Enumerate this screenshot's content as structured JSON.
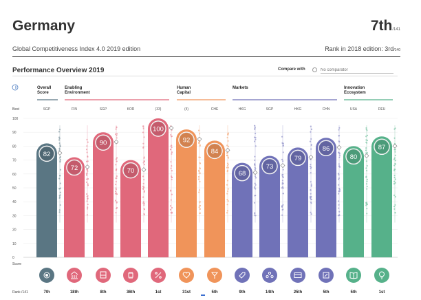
{
  "header": {
    "country": "Germany",
    "rank": "7th",
    "rank_of": "/141",
    "edition": "Global Competitiveness Index 4.0 2019 edition",
    "rank_2018_label": "Rank in 2018 edition: 3rd",
    "rank_2018_of": "/140"
  },
  "panel": {
    "title": "Performance Overview 2019",
    "compare_label": "Compare with",
    "compare_placeholder": "No comparator"
  },
  "labels": {
    "info": "i",
    "best": "Best",
    "score": "Score",
    "rank": "Rank /141"
  },
  "chart_data": {
    "type": "bar",
    "ylim": [
      0,
      100
    ],
    "yticks": [
      0,
      10,
      20,
      30,
      40,
      50,
      60,
      70,
      80,
      90,
      100
    ],
    "groups": [
      {
        "name": "Overall Score",
        "pillars": 1,
        "color": "#5a7683"
      },
      {
        "name": "Enabling Environment",
        "pillars": 4,
        "color": "#e0687b"
      },
      {
        "name": "Human Capital",
        "pillars": 2,
        "color": "#f0945a"
      },
      {
        "name": "Markets",
        "pillars": 4,
        "color": "#7072b8"
      },
      {
        "name": "Innovation Ecosystem",
        "pillars": 2,
        "color": "#56b18a"
      }
    ],
    "pillars": [
      {
        "best": "SGP",
        "value": 82,
        "rank": "7th",
        "icon": "target-icon",
        "group": 0
      },
      {
        "best": "FIN",
        "value": 72,
        "rank": "18th",
        "icon": "institutions-icon",
        "group": 1
      },
      {
        "best": "SGP",
        "value": 90,
        "rank": "8th",
        "icon": "infrastructure-icon",
        "group": 1
      },
      {
        "best": "KOR",
        "value": 70,
        "rank": "36th",
        "icon": "ict-chip-icon",
        "group": 1
      },
      {
        "best": "(33)",
        "value": 100,
        "rank": "1st",
        "icon": "percent-icon",
        "group": 1
      },
      {
        "best": "(4)",
        "value": 92,
        "rank": "31st",
        "icon": "health-heart-icon",
        "group": 2
      },
      {
        "best": "CHE",
        "value": 84,
        "rank": "5th",
        "icon": "skills-icon",
        "group": 2
      },
      {
        "best": "HKG",
        "value": 68,
        "rank": "9th",
        "icon": "product-tag-icon",
        "group": 3
      },
      {
        "best": "SGP",
        "value": 73,
        "rank": "14th",
        "icon": "labour-people-icon",
        "group": 3
      },
      {
        "best": "HKG",
        "value": 79,
        "rank": "25th",
        "icon": "financial-card-icon",
        "group": 3
      },
      {
        "best": "CHN",
        "value": 86,
        "rank": "5th",
        "icon": "market-size-icon",
        "group": 3
      },
      {
        "best": "USA",
        "value": 80,
        "rank": "5th",
        "icon": "business-book-icon",
        "group": 4
      },
      {
        "best": "DEU",
        "value": 87,
        "rank": "1st",
        "icon": "innovation-bulb-icon",
        "group": 4
      }
    ]
  }
}
